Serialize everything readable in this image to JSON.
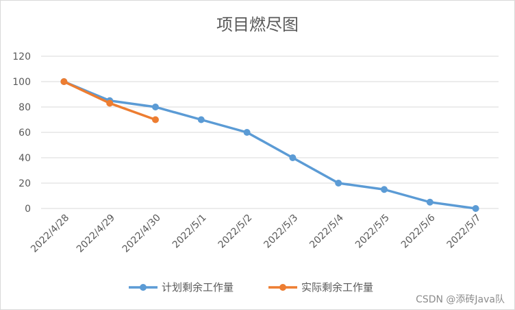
{
  "chart_data": {
    "type": "line",
    "title": "项目燃尽图",
    "xlabel": "",
    "ylabel": "",
    "categories": [
      "2022/4/28",
      "2022/4/29",
      "2022/4/30",
      "2022/5/1",
      "2022/5/2",
      "2022/5/3",
      "2022/5/4",
      "2022/5/5",
      "2022/5/6",
      "2022/5/7"
    ],
    "y_ticks": [
      "0",
      "20",
      "40",
      "60",
      "80",
      "100",
      "120"
    ],
    "ylim": [
      0,
      120
    ],
    "grid": "horizontal",
    "legend_position": "bottom",
    "series": [
      {
        "name": "计划剩余工作量",
        "color": "#5B9BD5",
        "values": [
          100,
          85,
          80,
          70,
          60,
          40,
          20,
          15,
          5,
          0
        ]
      },
      {
        "name": "实际剩余工作量",
        "color": "#ED7D31",
        "values": [
          100,
          83,
          70,
          null,
          null,
          null,
          null,
          null,
          null,
          null
        ]
      }
    ]
  },
  "watermark": "CSDN @添砖Java队"
}
